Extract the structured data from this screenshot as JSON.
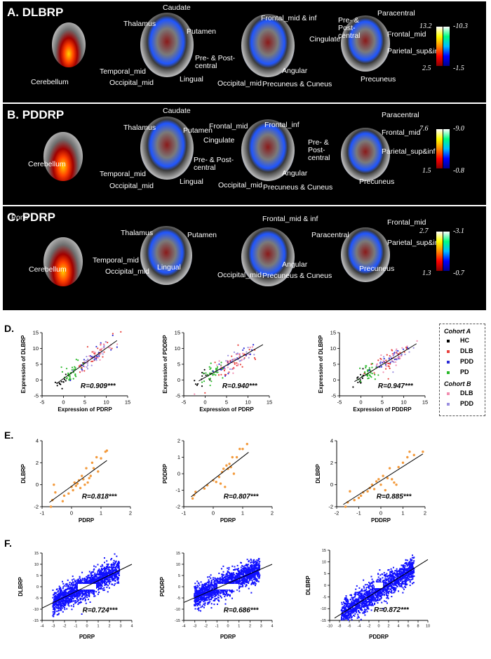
{
  "panels": [
    {
      "title": "A. DLBRP",
      "labels": {
        "cerebellum": "Cerebellum",
        "caudate": "Caudate",
        "thalamus": "Thalamus",
        "putamen": "Putamen",
        "temporal_mid": "Temporal_mid",
        "occipital_mid": "Occipital_mid",
        "lingual": "Lingual",
        "frontal_mid_inf": "Frontal_mid & inf",
        "cingulate": "Cingulate",
        "prepost": "Pre- & Post-\ncentral",
        "angular": "Angular",
        "occipital_mid2": "Occipital_mid",
        "precuneus_cuneus": "Precuneus & Cuneus",
        "prepost2": "Pre- &\nPost-\ncentral",
        "paracentral": "Paracentral",
        "frontal_mid": "Frontal_mid",
        "parietal": "Parietal_sup&inf",
        "precuneus": "Precuneus"
      },
      "colorbar": {
        "hot_max": "13.2",
        "hot_min": "2.5",
        "cool_max": "-10.3",
        "cool_min": "-1.5"
      }
    },
    {
      "title": "B. PDDRP",
      "labels": {
        "cerebellum": "Cerebellum",
        "caudate": "Caudate",
        "thalamus": "Thalamus",
        "putamen": "Putamen",
        "temporal_mid": "Temporal_mid",
        "occipital_mid": "Occipital_mid",
        "lingual": "Lingual",
        "frontal_mid": "Frontal_mid",
        "frontal_inf": "Frontal_inf",
        "cingulate": "Cingulate",
        "prepost": "Pre- & Post-\ncentral",
        "angular": "Angular",
        "occipital_mid2": "Occipital_mid",
        "precuneus_cuneus": "Precuneus & Cuneus",
        "paracentral": "Paracentral",
        "prepost2": "Pre- &\nPost-\ncentral",
        "frontal_mid2": "Frontal_mid",
        "parietal": "Parietal_sup&inf",
        "precuneus": "Precuneus"
      },
      "colorbar": {
        "hot_max": "7.6",
        "hot_min": "1.5",
        "cool_max": "-9.0",
        "cool_min": "-0.8"
      }
    },
    {
      "title": "C. PDRP",
      "labels": {
        "pons": "Pons",
        "cerebellum": "Cerebellum",
        "thalamus": "Thalamus",
        "putamen": "Putamen",
        "temporal_mid": "Temporal_mid",
        "occipital_mid": "Occipital_mid",
        "lingual": "Lingual",
        "frontal_mid_inf": "Frontal_mid & inf",
        "angular": "Angular",
        "occipital_mid2": "Occipital_mid",
        "precuneus_cuneus": "Precuneus & Cuneus",
        "paracentral": "Paracentral",
        "frontal_mid": "Frontal_mid",
        "parietal": "Parietal_sup&inf",
        "precuneus": "Precuneus"
      },
      "colorbar": {
        "hot_max": "2.7",
        "hot_min": "1.3",
        "cool_max": "-3.1",
        "cool_min": "-0.7"
      }
    }
  ],
  "row_labels": {
    "D": "D.",
    "E": "E.",
    "F": "F."
  },
  "legend": {
    "cohort_a": "Cohort A",
    "cohort_b": "Cohort B",
    "items_a": [
      {
        "label": "HC",
        "color": "#000000"
      },
      {
        "label": "DLB",
        "color": "#e8413c"
      },
      {
        "label": "PDD",
        "color": "#2b2bd6"
      },
      {
        "label": "PD",
        "color": "#28b828"
      }
    ],
    "items_b": [
      {
        "label": "DLB",
        "color": "#f28db0"
      },
      {
        "label": "PDD",
        "color": "#9b8fe0"
      }
    ]
  },
  "chart_data": [
    {
      "type": "scatter",
      "row": "D",
      "xlabel": "Expression of PDRP",
      "ylabel": "Expression of DLBRP",
      "annotation": "R=0.909***",
      "xlim": [
        -5,
        15
      ],
      "ylim": [
        -5,
        15
      ],
      "xticks": [
        -5,
        0,
        5,
        10,
        15
      ],
      "yticks": [
        -5,
        0,
        5,
        10,
        15
      ],
      "fit": [
        [
          -1.5,
          -1.0
        ],
        [
          12.5,
          12.5
        ]
      ]
    },
    {
      "type": "scatter",
      "row": "D",
      "xlabel": "Expression of PDRP",
      "ylabel": "Expression of PDDRP",
      "annotation": "R=0.940***",
      "xlim": [
        -5,
        15
      ],
      "ylim": [
        -5,
        15
      ],
      "xticks": [
        -5,
        0,
        5,
        10,
        15
      ],
      "yticks": [
        -5,
        0,
        5,
        10,
        15
      ],
      "fit": [
        [
          -1.5,
          -0.3
        ],
        [
          13.5,
          11.2
        ]
      ]
    },
    {
      "type": "scatter",
      "row": "D",
      "xlabel": "Expression of PDDRP",
      "ylabel": "Expression of DLBRP",
      "annotation": "R=0.947***",
      "xlim": [
        -5,
        15
      ],
      "ylim": [
        -5,
        15
      ],
      "xticks": [
        -5,
        0,
        5,
        10,
        15
      ],
      "yticks": [
        -5,
        0,
        5,
        10,
        15
      ],
      "fit": [
        [
          -1.5,
          -0.5
        ],
        [
          13,
          11.5
        ]
      ]
    },
    {
      "type": "scatter",
      "row": "E",
      "xlabel": "PDRP",
      "ylabel": "DLBRP",
      "annotation": "R=0.818***",
      "xlim": [
        -1,
        2
      ],
      "ylim": [
        -2,
        4
      ],
      "xticks": [
        -1,
        0,
        1,
        2
      ],
      "yticks": [
        -2,
        0,
        2,
        4
      ],
      "fit": [
        [
          -0.75,
          -1.6
        ],
        [
          1.2,
          2.2
        ]
      ],
      "points": [
        [
          -0.7,
          -2
        ],
        [
          -0.65,
          -1.4
        ],
        [
          -0.6,
          0
        ],
        [
          -0.55,
          -0.7
        ],
        [
          -0.3,
          -1.5
        ],
        [
          -0.25,
          -1
        ],
        [
          -0.1,
          -0.8
        ],
        [
          0,
          -0.2
        ],
        [
          0.05,
          -0.5
        ],
        [
          0.1,
          0.2
        ],
        [
          0.15,
          -0.1
        ],
        [
          0.2,
          0.1
        ],
        [
          0.25,
          0.4
        ],
        [
          0.3,
          -0.3
        ],
        [
          0.35,
          0.8
        ],
        [
          0.4,
          0.5
        ],
        [
          0.45,
          0
        ],
        [
          0.5,
          1.5
        ],
        [
          0.55,
          0.2
        ],
        [
          0.6,
          0.6
        ],
        [
          0.65,
          0.8
        ],
        [
          0.7,
          2
        ],
        [
          0.75,
          1.5
        ],
        [
          0.85,
          2.5
        ],
        [
          0.9,
          1.2
        ],
        [
          1.0,
          2.4
        ],
        [
          1.15,
          3
        ],
        [
          1.2,
          3.1
        ]
      ]
    },
    {
      "type": "scatter",
      "row": "E",
      "xlabel": "PDRP",
      "ylabel": "PDDRP",
      "annotation": "R=0.807***",
      "xlim": [
        -1,
        2
      ],
      "ylim": [
        -2,
        2
      ],
      "xticks": [
        -1,
        0,
        1,
        2
      ],
      "yticks": [
        -2,
        -1,
        0,
        1,
        2
      ],
      "fit": [
        [
          -0.75,
          -1.4
        ],
        [
          1.2,
          1.3
        ]
      ],
      "points": [
        [
          -0.7,
          -1.5
        ],
        [
          -0.65,
          -1.3
        ],
        [
          -0.6,
          -1.1
        ],
        [
          -0.3,
          -0.9
        ],
        [
          -0.2,
          -0.7
        ],
        [
          0,
          -0.4
        ],
        [
          0.1,
          -0.5
        ],
        [
          0.2,
          -0.2
        ],
        [
          0.25,
          -0.6
        ],
        [
          0.3,
          0.1
        ],
        [
          0.35,
          0.3
        ],
        [
          0.4,
          -0.8
        ],
        [
          0.45,
          0.5
        ],
        [
          0.5,
          0.3
        ],
        [
          0.55,
          0.6
        ],
        [
          0.6,
          0.4
        ],
        [
          0.65,
          1.0
        ],
        [
          0.7,
          0
        ],
        [
          0.8,
          1.0
        ],
        [
          0.9,
          1.5
        ],
        [
          1.0,
          1.5
        ],
        [
          1.15,
          1.8
        ]
      ]
    },
    {
      "type": "scatter",
      "row": "E",
      "xlabel": "PDDRP",
      "ylabel": "DLBRP",
      "annotation": "R=0.885***",
      "xlim": [
        -2,
        2
      ],
      "ylim": [
        -2,
        4
      ],
      "xticks": [
        -2,
        -1,
        0,
        1,
        2
      ],
      "yticks": [
        -2,
        0,
        2,
        4
      ],
      "fit": [
        [
          -1.7,
          -1.8
        ],
        [
          1.9,
          2.8
        ]
      ],
      "points": [
        [
          -1.6,
          -2
        ],
        [
          -1.5,
          -1.6
        ],
        [
          -1.4,
          -0.6
        ],
        [
          -1.2,
          -1.4
        ],
        [
          -1,
          -1.2
        ],
        [
          -0.9,
          -1
        ],
        [
          -0.8,
          -0.7
        ],
        [
          -0.6,
          -0.6
        ],
        [
          -0.5,
          -0.3
        ],
        [
          -0.4,
          0
        ],
        [
          -0.3,
          -0.4
        ],
        [
          -0.2,
          0.3
        ],
        [
          -0.1,
          0.5
        ],
        [
          0,
          0
        ],
        [
          0.1,
          0.8
        ],
        [
          0.2,
          -0.5
        ],
        [
          0.3,
          0.6
        ],
        [
          0.4,
          1.5
        ],
        [
          0.5,
          0.5
        ],
        [
          0.6,
          0.2
        ],
        [
          0.7,
          0
        ],
        [
          0.8,
          1.6
        ],
        [
          1,
          2
        ],
        [
          1.2,
          2.5
        ],
        [
          1.3,
          3
        ],
        [
          1.5,
          2.7
        ],
        [
          1.9,
          3
        ]
      ]
    },
    {
      "type": "scatter",
      "row": "F",
      "xlabel": "PDRP",
      "ylabel": "DLBRP",
      "annotation": "R=0.724***",
      "xlim": [
        -4,
        4
      ],
      "ylim": [
        -15,
        15
      ],
      "xticks": [
        -4,
        -3,
        -2,
        -1,
        0,
        1,
        2,
        3,
        4
      ],
      "yticks": [
        -15,
        -10,
        -5,
        0,
        5,
        10,
        15
      ],
      "fit": [
        [
          -4,
          -9.5
        ],
        [
          4,
          10
        ]
      ]
    },
    {
      "type": "scatter",
      "row": "F",
      "xlabel": "PDRP",
      "ylabel": "PDDRP",
      "annotation": "R=0.686***",
      "xlim": [
        -4,
        4
      ],
      "ylim": [
        -15,
        15
      ],
      "xticks": [
        -4,
        -3,
        -2,
        -1,
        0,
        1,
        2,
        3,
        4
      ],
      "yticks": [
        -15,
        -10,
        -5,
        0,
        5,
        10,
        15
      ],
      "fit": [
        [
          -4,
          -7
        ],
        [
          4,
          10
        ]
      ]
    },
    {
      "type": "scatter",
      "row": "F",
      "xlabel": "PDDRP",
      "ylabel": "DLBRP",
      "annotation": "R=0.872***",
      "xlim": [
        -10,
        10
      ],
      "ylim": [
        -15,
        15
      ],
      "xticks": [
        -10,
        -8,
        -6,
        -4,
        -2,
        0,
        2,
        4,
        6,
        8,
        10
      ],
      "yticks": [
        -15,
        -10,
        -5,
        0,
        5,
        10,
        15
      ],
      "fit": [
        [
          -9,
          -14
        ],
        [
          10,
          11
        ]
      ]
    }
  ]
}
